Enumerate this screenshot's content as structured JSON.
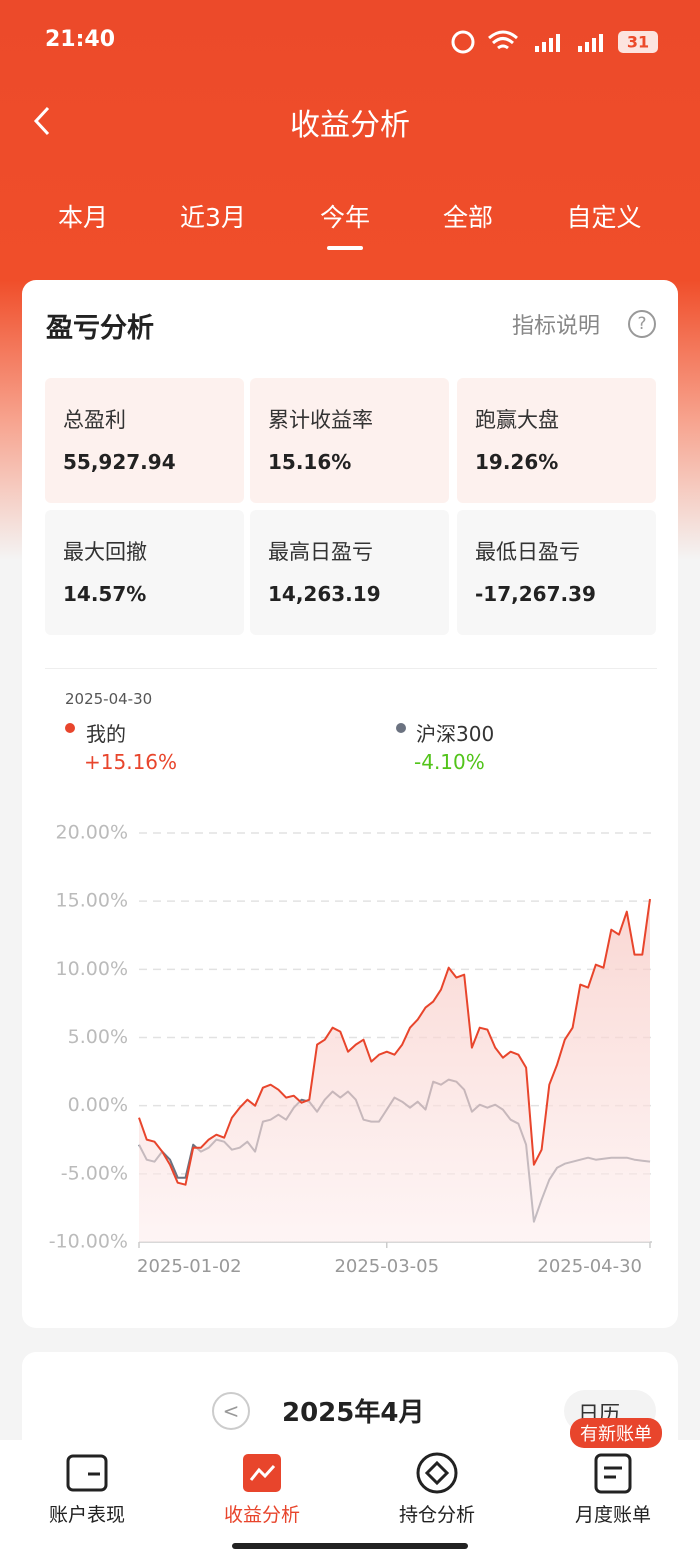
{
  "status_bar": {
    "time": "21:40",
    "battery": "31"
  },
  "header": {
    "title": "收益分析"
  },
  "tabs": [
    "本月",
    "近3月",
    "今年",
    "全部",
    "自定义"
  ],
  "card": {
    "title": "盈亏分析",
    "help": "指标说明",
    "metrics": [
      {
        "label": "总盈利",
        "value": "55,927.94"
      },
      {
        "label": "累计收益率",
        "value": "15.16%"
      },
      {
        "label": "跑赢大盘",
        "value": "19.26%"
      },
      {
        "label": "最大回撤",
        "value": "14.57%"
      },
      {
        "label": "最高日盈亏",
        "value": "14,263.19"
      },
      {
        "label": "最低日盈亏",
        "value": "-17,267.39"
      }
    ]
  },
  "chart_data": {
    "type": "line",
    "date": "2025-04-30",
    "categories": [
      "2025-01-02",
      null,
      null,
      null,
      null,
      null,
      null,
      null,
      null,
      null,
      null,
      null,
      null,
      null,
      null,
      null,
      null,
      null,
      null,
      null,
      null,
      null,
      null,
      null,
      null,
      null,
      null,
      null,
      null,
      null,
      null,
      null,
      "2025-03-05",
      null,
      null,
      null,
      null,
      null,
      null,
      null,
      null,
      null,
      null,
      null,
      null,
      null,
      null,
      null,
      null,
      null,
      null,
      null,
      null,
      null,
      null,
      null,
      null,
      null,
      null,
      null,
      null,
      null,
      null,
      null,
      null,
      null,
      "2025-04-30"
    ],
    "series": [
      {
        "name": "我的",
        "legend_value": "+15.16%",
        "color": "#e8452c",
        "values": [
          -0.88,
          -2.49,
          -2.64,
          -3.37,
          -4.33,
          -5.65,
          -5.8,
          -3.08,
          -3.08,
          -2.49,
          -2.13,
          -2.35,
          -0.88,
          -0.15,
          0.44,
          0.0,
          1.32,
          1.54,
          1.17,
          0.59,
          0.73,
          0.22,
          0.44,
          4.48,
          4.84,
          5.72,
          5.43,
          3.96,
          4.48,
          4.84,
          3.23,
          3.74,
          3.96,
          3.74,
          4.48,
          5.72,
          6.31,
          7.19,
          7.63,
          8.51,
          10.12,
          9.39,
          9.61,
          4.26,
          5.72,
          5.58,
          4.26,
          3.52,
          3.96,
          3.74,
          2.79,
          -4.33,
          -3.23,
          1.54,
          3.01,
          4.84,
          5.72,
          8.88,
          8.66,
          10.34,
          10.12,
          12.91,
          12.55,
          14.23,
          11.08,
          11.08,
          15.16
        ]
      },
      {
        "name": "沪深300",
        "legend_value": "-4.10%",
        "color": "#6b7280",
        "values": [
          -2.86,
          -3.96,
          -4.11,
          -3.37,
          -3.96,
          -5.28,
          -5.28,
          -2.86,
          -3.37,
          -3.08,
          -2.49,
          -2.64,
          -3.23,
          -3.08,
          -2.64,
          -3.37,
          -1.17,
          -1.03,
          -0.66,
          -1.03,
          -0.15,
          0.44,
          0.29,
          -0.44,
          0.44,
          1.03,
          0.59,
          1.03,
          0.44,
          -1.03,
          -1.17,
          -1.17,
          -0.29,
          0.59,
          0.29,
          -0.15,
          0.29,
          -0.29,
          1.76,
          1.54,
          1.91,
          1.76,
          1.17,
          -0.44,
          0.07,
          -0.15,
          0.07,
          -0.29,
          -1.03,
          -1.32,
          -2.86,
          -8.51,
          -6.9,
          -5.43,
          -4.55,
          -4.26,
          -4.11,
          -3.96,
          -3.82,
          -3.96,
          -3.89,
          -3.82,
          -3.82,
          -3.82,
          -3.96,
          -4.04,
          -4.1
        ]
      }
    ],
    "ylim": [
      -10,
      20
    ],
    "yticks": [
      {
        "value": -10,
        "label": "-10.00%"
      },
      {
        "value": -5,
        "label": "-5.00%"
      },
      {
        "value": 0,
        "label": "0.00%"
      },
      {
        "value": 5,
        "label": "5.00%"
      },
      {
        "value": 10,
        "label": "10.00%"
      },
      {
        "value": 15,
        "label": "15.00%"
      },
      {
        "value": 20,
        "label": "20.00%"
      }
    ],
    "grid": true,
    "area": true
  },
  "calendar": {
    "month": "2025年4月",
    "view": "日历"
  },
  "nav": {
    "badge": "有新账单",
    "items": [
      "账户表现",
      "收益分析",
      "持仓分析",
      "月度账单"
    ],
    "active": 1
  }
}
